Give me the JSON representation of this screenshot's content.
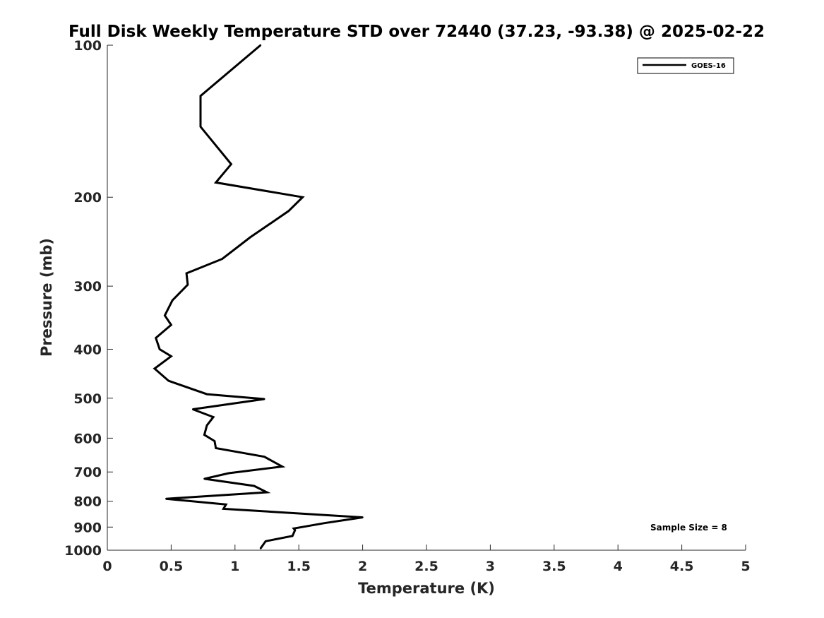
{
  "chart_data": {
    "type": "line",
    "title": "Full Disk Weekly Temperature STD over 72440 (37.23, -93.38) @ 2025-02-22",
    "xlabel": "Temperature (K)",
    "ylabel": "Pressure (mb)",
    "xlim": [
      0,
      5
    ],
    "ylim": [
      100,
      1000
    ],
    "y_scale": "log",
    "y_reversed": true,
    "x_ticks": [
      "0",
      "0.5",
      "1",
      "1.5",
      "2",
      "2.5",
      "3",
      "3.5",
      "4",
      "4.5",
      "5"
    ],
    "y_ticks": [
      "100",
      "200",
      "300",
      "400",
      "500",
      "600",
      "700",
      "800",
      "900",
      "1000"
    ],
    "grid": false,
    "legend_position": "top-right",
    "series": [
      {
        "name": "GOES-16",
        "color": "#000000",
        "x": [
          1.2,
          0.73,
          0.73,
          0.97,
          0.85,
          1.53,
          1.42,
          1.12,
          0.9,
          0.62,
          0.63,
          0.51,
          0.45,
          0.5,
          0.38,
          0.41,
          0.5,
          0.37,
          0.48,
          0.78,
          1.23,
          0.67,
          0.83,
          0.78,
          0.76,
          0.84,
          0.85,
          1.23,
          1.37,
          0.95,
          0.76,
          1.15,
          1.25,
          0.46,
          0.93,
          0.91,
          2.0,
          1.7,
          1.46,
          1.47,
          1.45,
          1.24,
          1.2
        ],
        "y": [
          100,
          126,
          145,
          172,
          187,
          200,
          213,
          240,
          265,
          283,
          298,
          320,
          343,
          358,
          380,
          400,
          413,
          437,
          462,
          491,
          502,
          526,
          545,
          566,
          591,
          608,
          628,
          653,
          683,
          704,
          722,
          746,
          768,
          791,
          812,
          828,
          861,
          884,
          906,
          913,
          937,
          960,
          992
        ]
      }
    ],
    "annotations": [
      "Sample Size = 8"
    ]
  }
}
